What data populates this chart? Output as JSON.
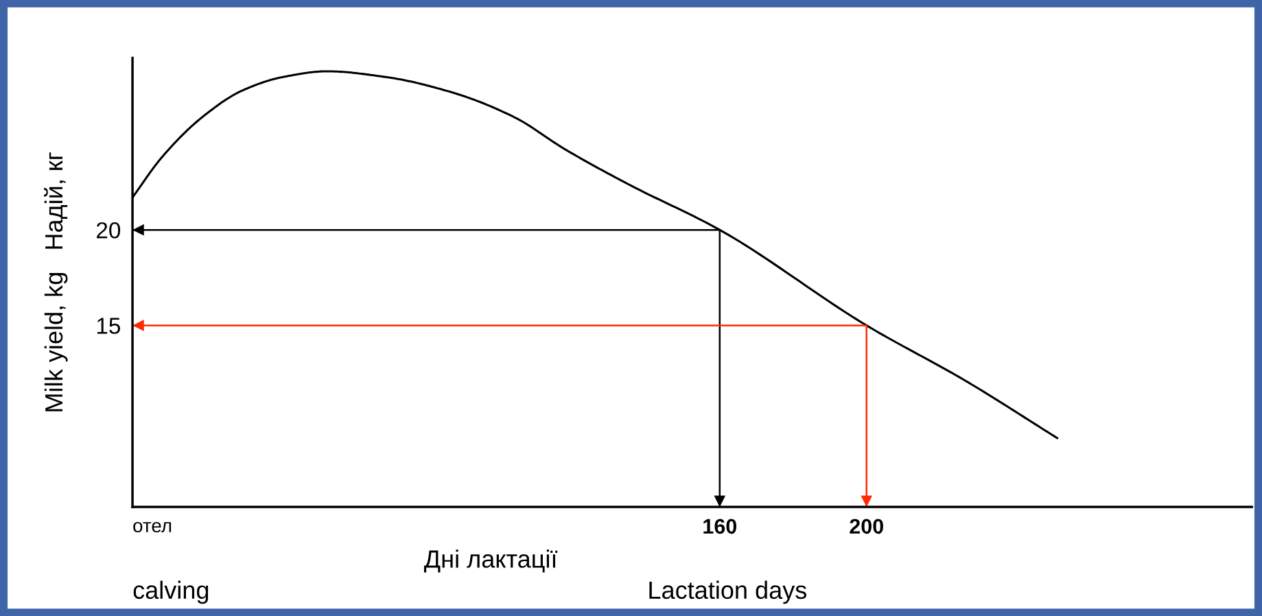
{
  "chart_data": {
    "type": "line",
    "xlabel": "Дні лактації",
    "ylabel": "Milk yield, kg   Надій, кг",
    "annotations": [
      "calving",
      "Lactation days"
    ],
    "xlim": [
      0,
      305
    ],
    "ylim": [
      5.5,
      29
    ],
    "xticks": [
      {
        "value": 0,
        "label": "отел"
      },
      160,
      200
    ],
    "yticks": [
      15,
      20
    ],
    "grid": false,
    "marker": "none",
    "line_style": "solid",
    "series": [
      {
        "color": "#000000",
        "x": [
          0,
          8,
          19,
          30,
          41,
          53,
          69,
          87,
          104,
          118,
          135,
          160,
          200,
          227,
          252
        ],
        "values": [
          21.7,
          23.8,
          25.9,
          27.3,
          28.0,
          28.3,
          28.0,
          27.2,
          25.9,
          24.2,
          22.4,
          20,
          15,
          12.1,
          9.1
        ]
      },
      {
        "color": "#000000",
        "x": [
          0,
          160,
          160
        ],
        "values": [
          20,
          20,
          5.5
        ]
      },
      {
        "color": "#ff2a00",
        "x": [
          0,
          200,
          200
        ],
        "values": [
          15,
          15,
          5.5
        ]
      }
    ]
  }
}
